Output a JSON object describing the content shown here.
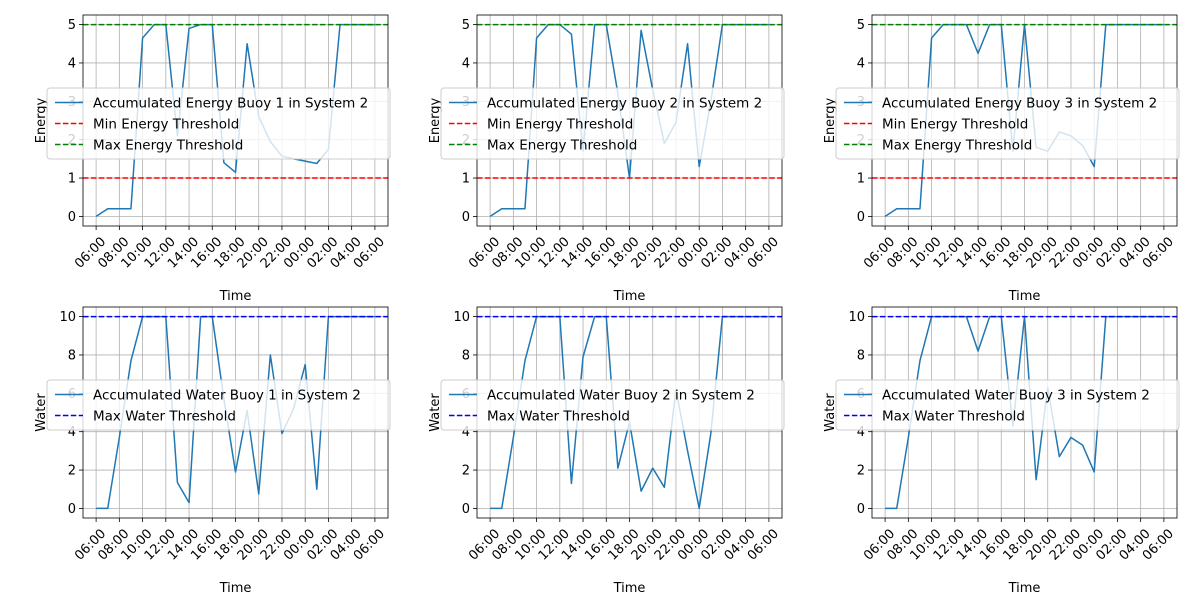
{
  "chart_data": [
    {
      "type": "line",
      "xlabel": "Time",
      "ylabel": "Energy",
      "x_tick_labels": [
        "06:00",
        "08:00",
        "10:00",
        "12:00",
        "14:00",
        "16:00",
        "18:00",
        "20:00",
        "22:00",
        "00:00",
        "02:00",
        "04:00",
        "06:00"
      ],
      "y_ticks": [
        0,
        1,
        2,
        3,
        4,
        5
      ],
      "ylim": [
        -0.25,
        5.25
      ],
      "grid": true,
      "legend_position": "center-left",
      "series": [
        {
          "name": "Accumulated Energy Buoy 1 in System 2",
          "color": "#1f77b4",
          "style": "solid",
          "values": [
            0,
            0.2,
            0.2,
            0.2,
            4.65,
            5,
            5,
            2.1,
            4.9,
            5,
            5,
            1.4,
            1.15,
            4.5,
            2.6,
            1.95,
            1.57,
            1.5,
            1.44,
            1.38,
            1.75,
            5,
            5,
            5,
            5
          ]
        },
        {
          "name": "Min Energy Threshold",
          "color": "#ff0000",
          "style": "dashed",
          "constant": 1
        },
        {
          "name": "Max Energy Threshold",
          "color": "#008000",
          "style": "dashed",
          "constant": 5
        }
      ]
    },
    {
      "type": "line",
      "xlabel": "Time",
      "ylabel": "Energy",
      "x_tick_labels": [
        "06:00",
        "08:00",
        "10:00",
        "12:00",
        "14:00",
        "16:00",
        "18:00",
        "20:00",
        "22:00",
        "00:00",
        "02:00",
        "04:00",
        "06:00"
      ],
      "y_ticks": [
        0,
        1,
        2,
        3,
        4,
        5
      ],
      "ylim": [
        -0.25,
        5.25
      ],
      "grid": true,
      "legend_position": "center-left",
      "series": [
        {
          "name": "Accumulated Energy Buoy 2 in System 2",
          "color": "#1f77b4",
          "style": "solid",
          "values": [
            0,
            0.2,
            0.2,
            0.2,
            4.65,
            5,
            5,
            4.75,
            1.7,
            5,
            5,
            3.2,
            1,
            4.85,
            3.3,
            1.9,
            2.45,
            4.5,
            1.3,
            3,
            5,
            5,
            5,
            5,
            5
          ]
        },
        {
          "name": "Min Energy Threshold",
          "color": "#ff0000",
          "style": "dashed",
          "constant": 1
        },
        {
          "name": "Max Energy Threshold",
          "color": "#008000",
          "style": "dashed",
          "constant": 5
        }
      ]
    },
    {
      "type": "line",
      "xlabel": "Time",
      "ylabel": "Energy",
      "x_tick_labels": [
        "06:00",
        "08:00",
        "10:00",
        "12:00",
        "14:00",
        "16:00",
        "18:00",
        "20:00",
        "22:00",
        "00:00",
        "02:00",
        "04:00",
        "06:00"
      ],
      "y_ticks": [
        0,
        1,
        2,
        3,
        4,
        5
      ],
      "ylim": [
        -0.25,
        5.25
      ],
      "grid": true,
      "legend_position": "center-left",
      "series": [
        {
          "name": "Accumulated Energy Buoy 3 in System 2",
          "color": "#1f77b4",
          "style": "solid",
          "values": [
            0,
            0.2,
            0.2,
            0.2,
            4.65,
            5,
            5,
            5,
            4.25,
            5,
            5,
            1.7,
            5,
            1.8,
            1.7,
            2.2,
            2.1,
            1.85,
            1.3,
            5,
            5,
            5,
            5,
            5,
            5
          ]
        },
        {
          "name": "Min Energy Threshold",
          "color": "#ff0000",
          "style": "dashed",
          "constant": 1
        },
        {
          "name": "Max Energy Threshold",
          "color": "#008000",
          "style": "dashed",
          "constant": 5
        }
      ]
    },
    {
      "type": "line",
      "xlabel": "Time",
      "ylabel": "Water",
      "x_tick_labels": [
        "06:00",
        "08:00",
        "10:00",
        "12:00",
        "14:00",
        "16:00",
        "18:00",
        "20:00",
        "22:00",
        "00:00",
        "02:00",
        "04:00",
        "06:00"
      ],
      "y_ticks": [
        0,
        2,
        4,
        6,
        8,
        10
      ],
      "ylim": [
        -0.5,
        10.5
      ],
      "grid": true,
      "legend_position": "center-left",
      "series": [
        {
          "name": "Accumulated Water Buoy 1 in System 2",
          "color": "#1f77b4",
          "style": "solid",
          "values": [
            0,
            0,
            3.7,
            7.7,
            10,
            10,
            10,
            1.35,
            0.3,
            10,
            10,
            5.7,
            1.9,
            5.1,
            0.75,
            8,
            3.9,
            5.2,
            7.5,
            1,
            10,
            10,
            10,
            10,
            10
          ]
        },
        {
          "name": "Max Water Threshold",
          "color": "#0000ff",
          "style": "dashed",
          "constant": 10
        }
      ]
    },
    {
      "type": "line",
      "xlabel": "Time",
      "ylabel": "Water",
      "x_tick_labels": [
        "06:00",
        "08:00",
        "10:00",
        "12:00",
        "14:00",
        "16:00",
        "18:00",
        "20:00",
        "22:00",
        "00:00",
        "02:00",
        "04:00",
        "06:00"
      ],
      "y_ticks": [
        0,
        2,
        4,
        6,
        8,
        10
      ],
      "ylim": [
        -0.5,
        10.5
      ],
      "grid": true,
      "legend_position": "center-left",
      "series": [
        {
          "name": "Accumulated Water Buoy 2 in System 2",
          "color": "#1f77b4",
          "style": "solid",
          "values": [
            0,
            0,
            3.7,
            7.7,
            10,
            10,
            10,
            1.3,
            7.9,
            10,
            10,
            2.1,
            4.5,
            0.9,
            2.1,
            1.1,
            6.2,
            3,
            0,
            3.9,
            10,
            10,
            10,
            10,
            10
          ]
        },
        {
          "name": "Max Water Threshold",
          "color": "#0000ff",
          "style": "dashed",
          "constant": 10
        }
      ]
    },
    {
      "type": "line",
      "xlabel": "Time",
      "ylabel": "Water",
      "x_tick_labels": [
        "06:00",
        "08:00",
        "10:00",
        "12:00",
        "14:00",
        "16:00",
        "18:00",
        "20:00",
        "22:00",
        "00:00",
        "02:00",
        "04:00",
        "06:00"
      ],
      "y_ticks": [
        0,
        2,
        4,
        6,
        8,
        10
      ],
      "ylim": [
        -0.5,
        10.5
      ],
      "grid": true,
      "legend_position": "center-left",
      "series": [
        {
          "name": "Accumulated Water Buoy 3 in System 2",
          "color": "#1f77b4",
          "style": "solid",
          "values": [
            0,
            0,
            3.7,
            7.7,
            10,
            10,
            10,
            10,
            8.2,
            10,
            10,
            4.3,
            10,
            1.5,
            6.3,
            2.7,
            3.7,
            3.3,
            1.9,
            10,
            10,
            10,
            10,
            10,
            10
          ]
        },
        {
          "name": "Max Water Threshold",
          "color": "#0000ff",
          "style": "dashed",
          "constant": 10
        }
      ]
    }
  ]
}
